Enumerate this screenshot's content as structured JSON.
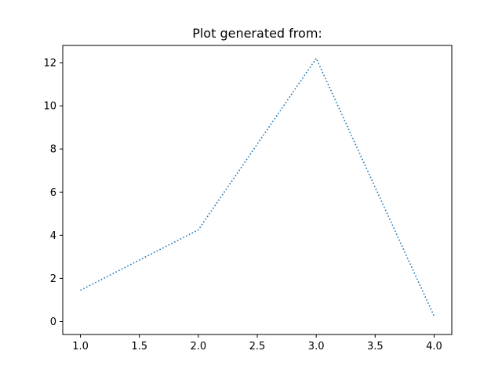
{
  "chart_data": {
    "type": "line",
    "title": "Plot generated from:",
    "xlabel": "",
    "ylabel": "",
    "xlim": [
      0.85,
      4.15
    ],
    "ylim": [
      -0.6,
      12.8
    ],
    "x_ticks": [
      "1.0",
      "1.5",
      "2.0",
      "2.5",
      "3.0",
      "3.5",
      "4.0"
    ],
    "y_ticks": [
      "0",
      "2",
      "4",
      "6",
      "8",
      "10",
      "12"
    ],
    "grid": false,
    "line_style": "dotted",
    "series": [
      {
        "x": [
          1.0,
          2.0,
          3.0,
          4.0
        ],
        "values": [
          1.45,
          4.25,
          12.2,
          0.25
        ],
        "color": "#1f77b4"
      }
    ]
  }
}
